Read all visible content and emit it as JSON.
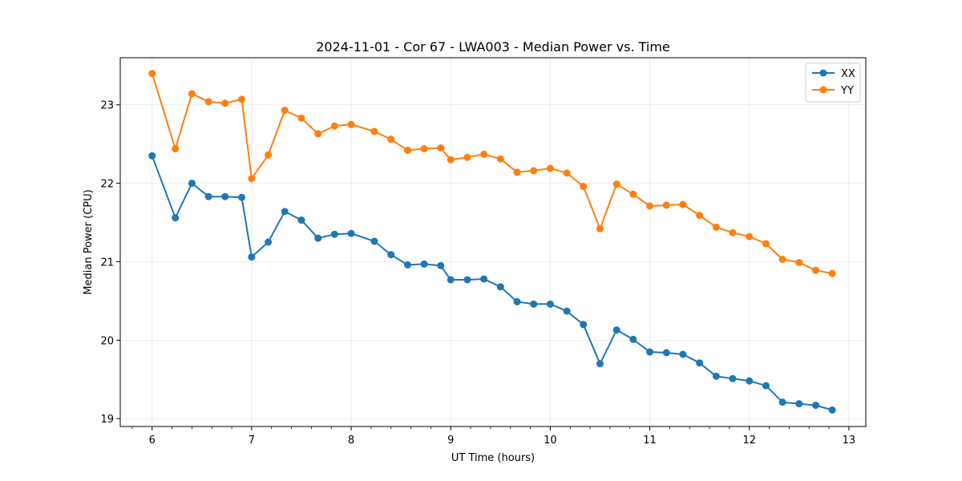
{
  "chart_data": {
    "type": "line",
    "title": "2024-11-01 - Cor 67 - LWA003 - Median Power vs. Time",
    "xlabel": "UT Time (hours)",
    "ylabel": "Median Power (CPU)",
    "xlim": [
      5.68,
      13.17
    ],
    "ylim": [
      18.9,
      23.6
    ],
    "xticks": [
      6,
      7,
      8,
      9,
      10,
      11,
      12,
      13
    ],
    "yticks": [
      19,
      20,
      21,
      22,
      23
    ],
    "grid": true,
    "legend_position": "top-right",
    "x": [
      6.0,
      6.233,
      6.4,
      6.567,
      6.733,
      6.9,
      7.0,
      7.167,
      7.333,
      7.5,
      7.667,
      7.833,
      8.0,
      8.233,
      8.4,
      8.567,
      8.733,
      8.9,
      9.0,
      9.167,
      9.333,
      9.5,
      9.667,
      9.833,
      10.0,
      10.167,
      10.333,
      10.5,
      10.667,
      10.833,
      11.0,
      11.167,
      11.333,
      11.5,
      11.667,
      11.833,
      12.0,
      12.167,
      12.333,
      12.5,
      12.667,
      12.833
    ],
    "series": [
      {
        "name": "XX",
        "color": "#1f77b4",
        "values": [
          22.35,
          21.56,
          22.0,
          21.83,
          21.83,
          21.82,
          21.06,
          21.25,
          21.64,
          21.53,
          21.3,
          21.35,
          21.36,
          21.26,
          21.09,
          20.96,
          20.97,
          20.95,
          20.77,
          20.77,
          20.78,
          20.68,
          20.49,
          20.46,
          20.46,
          20.37,
          20.2,
          19.7,
          20.13,
          20.01,
          19.85,
          19.84,
          19.82,
          19.71,
          19.54,
          19.51,
          19.48,
          19.42,
          19.21,
          19.19,
          19.17,
          19.11
        ]
      },
      {
        "name": "YY",
        "color": "#ff7f0e",
        "values": [
          23.4,
          22.44,
          23.14,
          23.04,
          23.02,
          23.07,
          22.06,
          22.36,
          22.93,
          22.83,
          22.63,
          22.73,
          22.75,
          22.66,
          22.56,
          22.42,
          22.44,
          22.45,
          22.3,
          22.33,
          22.37,
          22.31,
          22.14,
          22.16,
          22.19,
          22.13,
          21.96,
          21.42,
          21.99,
          21.86,
          21.71,
          21.72,
          21.73,
          21.59,
          21.44,
          21.37,
          21.32,
          21.23,
          21.03,
          20.99,
          20.89,
          20.85
        ]
      }
    ]
  }
}
